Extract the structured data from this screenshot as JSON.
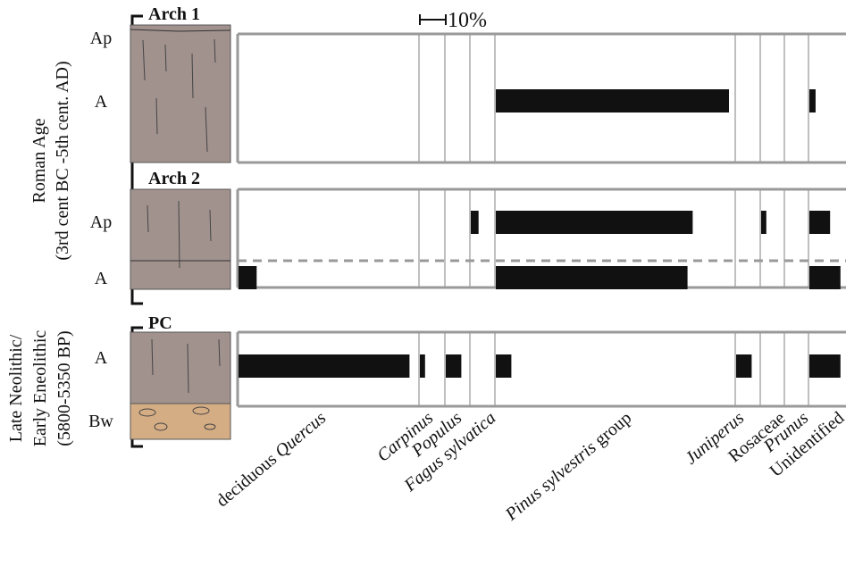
{
  "chart_data": {
    "type": "bar",
    "scale_bar": {
      "value": 10,
      "label": "10%"
    },
    "categories": [
      {
        "parts": [
          {
            "text": "deciduous "
          },
          {
            "text": "Quercus",
            "style": "italic"
          }
        ]
      },
      {
        "parts": [
          {
            "text": "Carpinus",
            "style": "italic"
          }
        ]
      },
      {
        "parts": [
          {
            "text": "Populus",
            "style": "italic"
          }
        ]
      },
      {
        "parts": [
          {
            "text": "Fagus sylvatica",
            "style": "italic"
          }
        ]
      },
      {
        "parts": [
          {
            "text": "Pinus sylvestris",
            "style": "italic"
          },
          {
            "text": " group"
          }
        ]
      },
      {
        "parts": [
          {
            "text": "Juniperus",
            "style": "italic"
          }
        ]
      },
      {
        "parts": [
          {
            "text": "Rosaceae"
          }
        ]
      },
      {
        "parts": [
          {
            "text": "Prunus",
            "style": "italic"
          }
        ]
      },
      {
        "parts": [
          {
            "text": "Unidentified"
          }
        ]
      }
    ],
    "periods": [
      {
        "lines": [
          "Roman Age",
          "(3rd cent BC -5th cent. AD)"
        ]
      },
      {
        "lines": [
          "Late Neolithic/",
          "Early Eneolithic",
          "(5800-5350 BP)"
        ]
      }
    ],
    "profiles": [
      {
        "name": "Arch 1",
        "horizons": [
          {
            "label": "Ap",
            "values": [
              null,
              null,
              null,
              null,
              null,
              null,
              null,
              null,
              null
            ]
          },
          {
            "label": "A",
            "values": [
              null,
              null,
              null,
              null,
              90,
              null,
              null,
              null,
              2.4
            ]
          }
        ]
      },
      {
        "name": "Arch 2",
        "horizons": [
          {
            "label": "Ap",
            "values": [
              null,
              null,
              null,
              3,
              76,
              null,
              2,
              null,
              8
            ]
          },
          {
            "label": "A",
            "values": [
              7,
              null,
              null,
              null,
              74,
              null,
              null,
              null,
              12
            ]
          }
        ]
      },
      {
        "name": "PC",
        "horizons": [
          {
            "label": "A",
            "values": [
              66,
              2,
              6,
              null,
              6,
              6,
              null,
              null,
              12
            ]
          },
          {
            "label": "Bw",
            "values": [
              null,
              null,
              null,
              null,
              null,
              null,
              null,
              null,
              null
            ]
          }
        ]
      }
    ]
  }
}
